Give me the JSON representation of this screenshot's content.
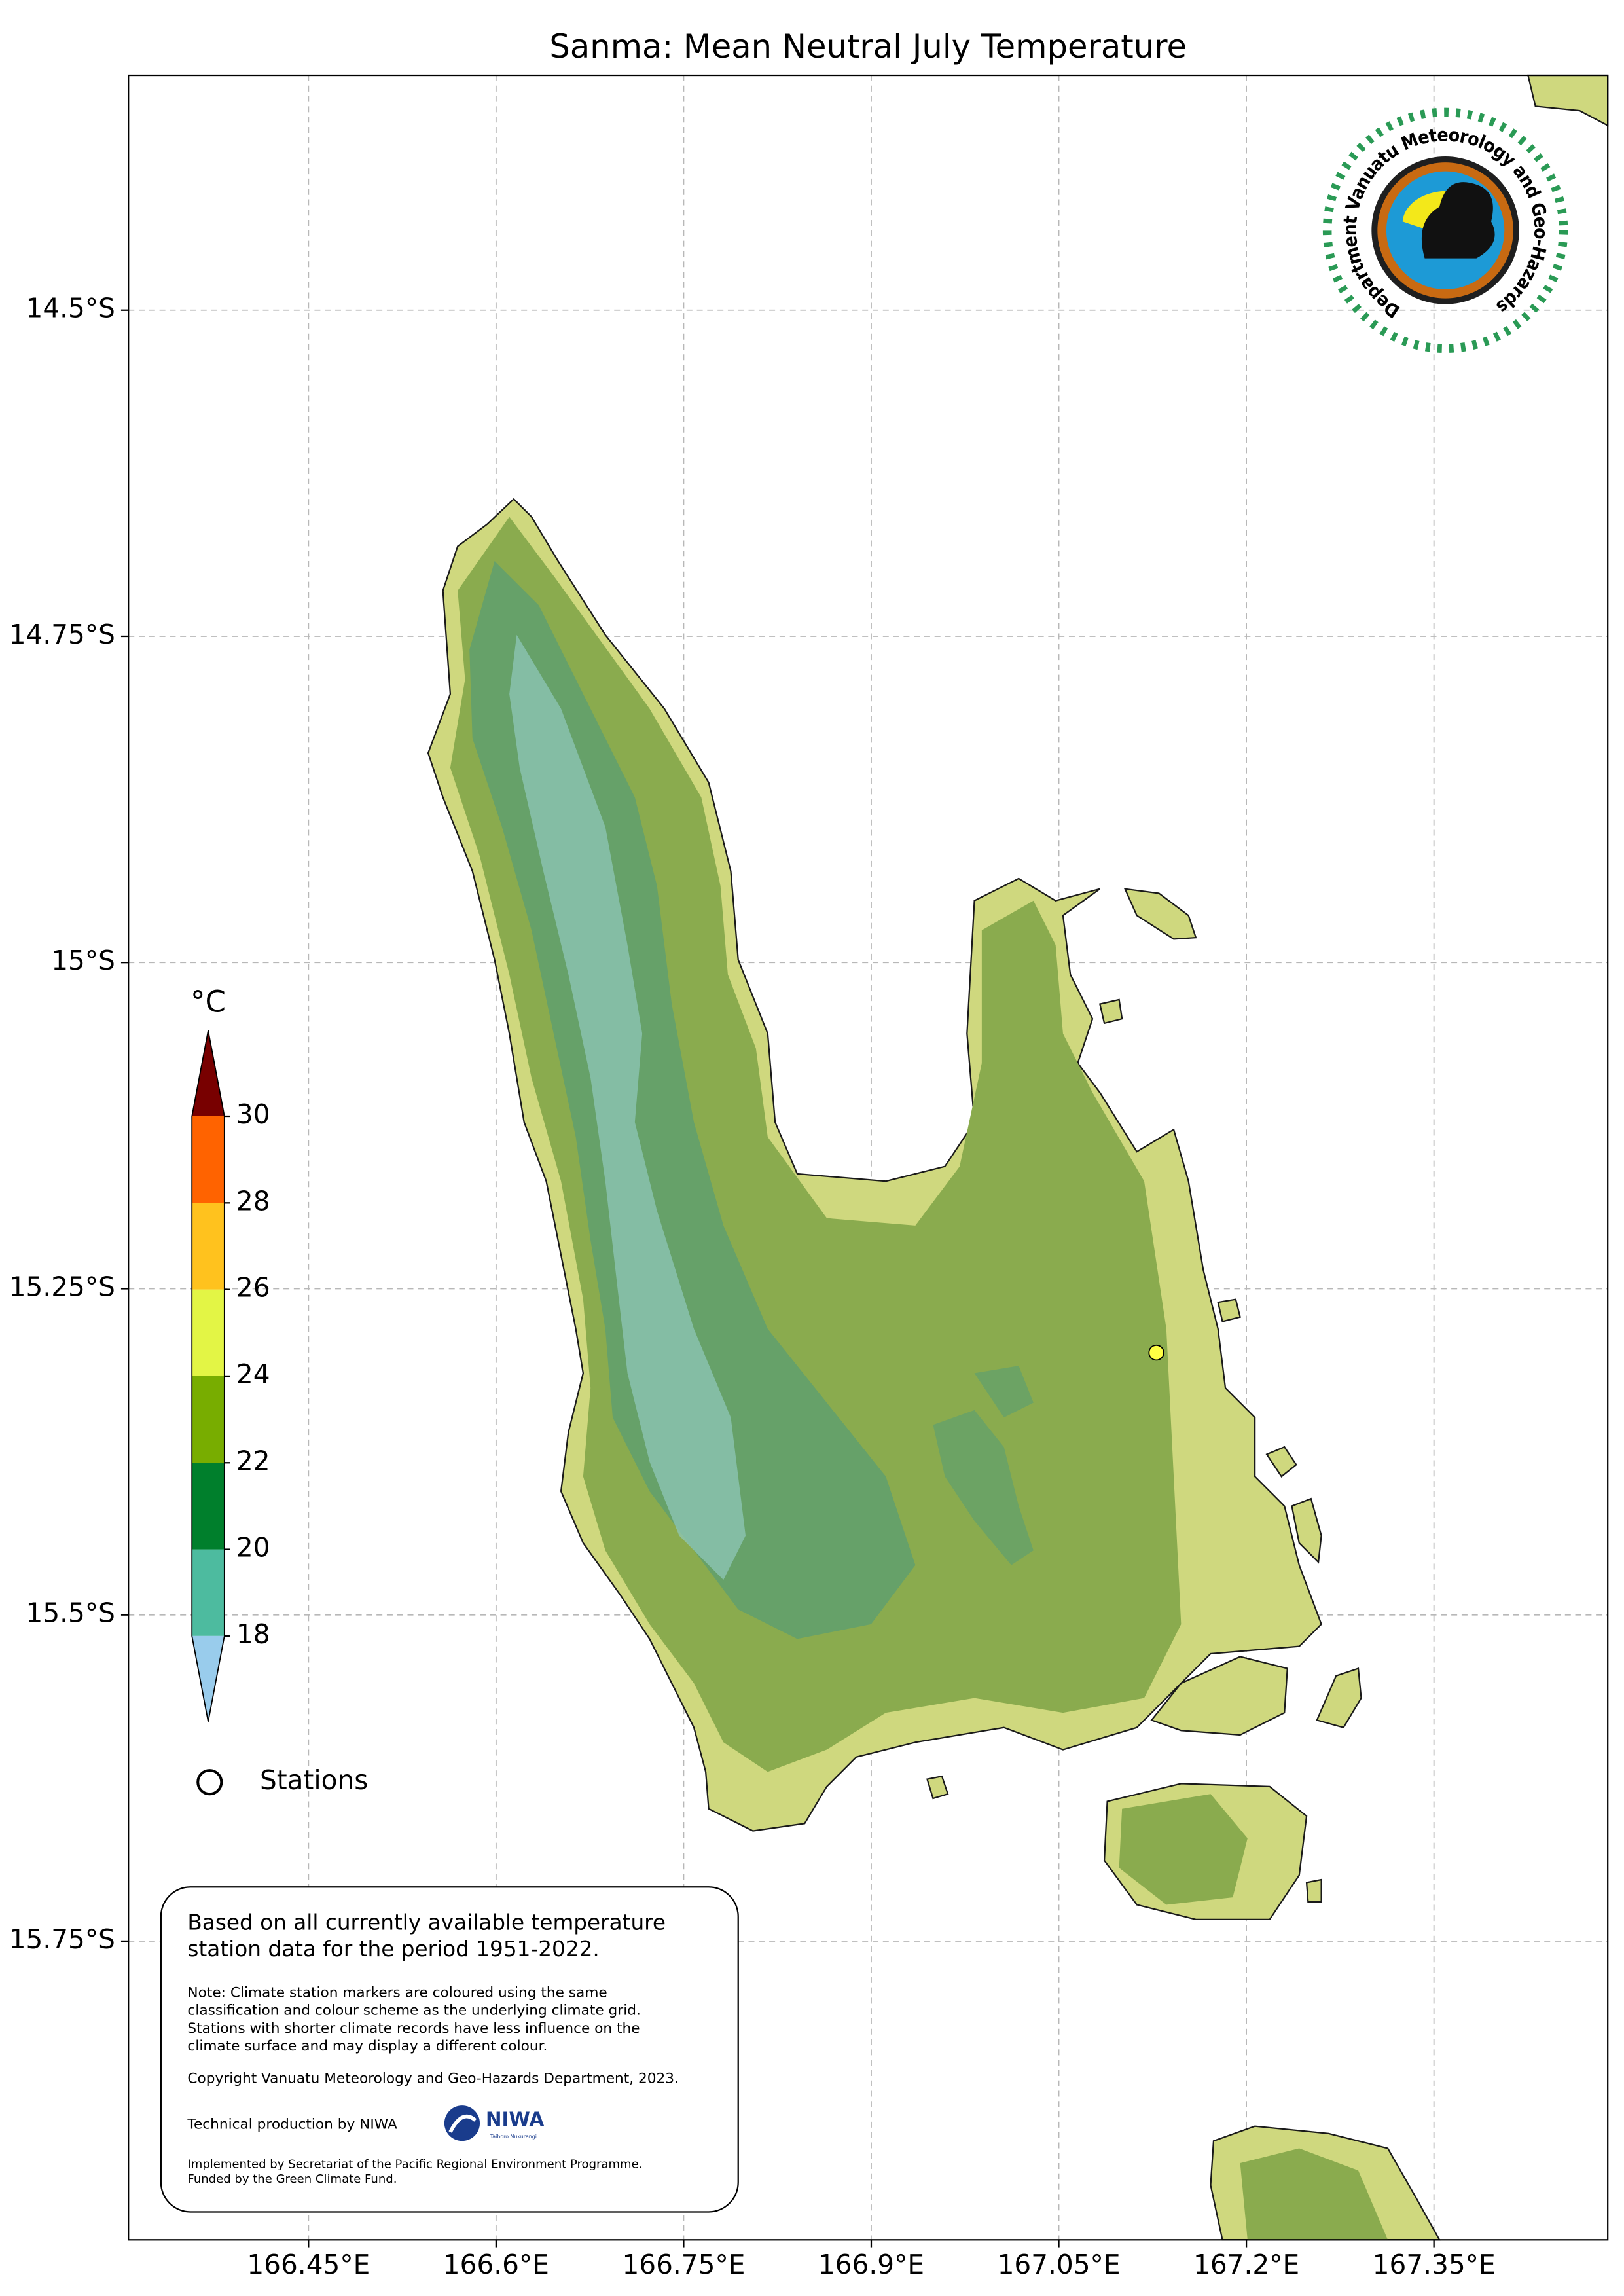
{
  "title": "Sanma: Mean Neutral July Temperature",
  "map": {
    "xlim": [
      166.306,
      167.489
    ],
    "ylim": [
      -15.979,
      -14.32
    ],
    "grid": true,
    "xticks": [
      {
        "value": 166.45,
        "label": "166.45°E"
      },
      {
        "value": 166.6,
        "label": "166.6°E"
      },
      {
        "value": 166.75,
        "label": "166.75°E"
      },
      {
        "value": 166.9,
        "label": "166.9°E"
      },
      {
        "value": 167.05,
        "label": "167.05°E"
      },
      {
        "value": 167.2,
        "label": "167.2°E"
      },
      {
        "value": 167.35,
        "label": "167.35°E"
      }
    ],
    "yticks": [
      {
        "value": -14.5,
        "label": "14.5°S"
      },
      {
        "value": -14.75,
        "label": "14.75°S"
      },
      {
        "value": -15,
        "label": "15°S"
      },
      {
        "value": -15.25,
        "label": "15.25°S"
      },
      {
        "value": -15.5,
        "label": "15.5°S"
      },
      {
        "value": -15.75,
        "label": "15.75°S"
      }
    ]
  },
  "colorbar": {
    "unit": "°C",
    "levels": [
      18,
      20,
      22,
      24,
      26,
      28,
      30
    ],
    "colors": [
      "#4dbb9f",
      "#007f2c",
      "#78ad00",
      "#e3f545",
      "#ffc21e",
      "#ff6300"
    ],
    "under_color": "#99ccec",
    "over_color": "#780000"
  },
  "legend": {
    "label": "Stations"
  },
  "stations": [
    {
      "lon": 167.128,
      "lat": -15.299,
      "color": "#ffff44"
    }
  ],
  "info": {
    "summary": [
      "Based on all currently available temperature",
      "station data for the period 1951-2022."
    ],
    "note": [
      "Note: Climate station markers are coloured using the same",
      "classification and colour scheme as the underlying climate grid.",
      "Stations with shorter climate records have less influence on the",
      "climate surface and may display a different colour."
    ],
    "copyright": "Copyright Vanuatu Meteorology and Geo-Hazards Department, 2023.",
    "production": "Technical production by NIWA",
    "funding": [
      "Implemented by Secretariat of the Pacific Regional Environment Programme.",
      "Funded by the Green Climate Fund."
    ]
  },
  "logos": {
    "department": "Department Vanuatu Meteorology and Geo-Hazards",
    "niwa": "NIWA",
    "niwa_sub": "Taihoro Nukurangi"
  }
}
